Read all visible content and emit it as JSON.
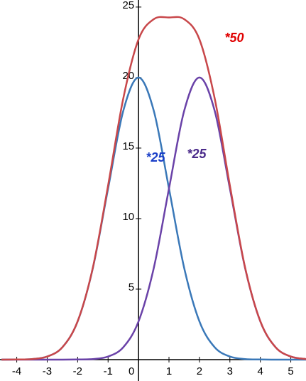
{
  "chart_data": {
    "type": "line",
    "x": [
      -4.5,
      -4,
      -3.5,
      -3,
      -2.5,
      -2,
      -1.5,
      -1,
      -0.5,
      0,
      0.5,
      1,
      1.5,
      2,
      2.5,
      3,
      3.5,
      4,
      4.5,
      5,
      5.5
    ],
    "series": [
      {
        "color": "#3a78b8",
        "values": [
          0,
          0.01,
          0.04,
          0.22,
          0.88,
          2.71,
          6.49,
          12.13,
          17.65,
          20,
          17.65,
          12.13,
          6.49,
          2.71,
          0.88,
          0.22,
          0.04,
          0.01,
          0,
          0,
          0
        ]
      },
      {
        "color": "#6a42a8",
        "values": [
          0,
          0,
          0,
          0,
          0,
          0.01,
          0.04,
          0.22,
          0.88,
          2.71,
          6.49,
          12.13,
          17.65,
          20,
          17.65,
          12.13,
          6.49,
          2.71,
          0.88,
          0.22,
          0.04
        ]
      },
      {
        "color": "#c8474a",
        "values": [
          0,
          0.01,
          0.04,
          0.22,
          0.88,
          2.72,
          6.53,
          12.35,
          18.53,
          22.71,
          24.14,
          24.26,
          24.14,
          22.71,
          18.53,
          12.35,
          6.53,
          2.72,
          0.88,
          0.22,
          0.04
        ]
      }
    ],
    "annotations": [
      {
        "text": "*50",
        "color": "#e00000"
      },
      {
        "text": "*25",
        "color": "#1a3fc8"
      },
      {
        "text": "*25",
        "color": "#4a2a8a"
      }
    ],
    "xlim": [
      -4.55,
      5.5
    ],
    "ylim": [
      0,
      25.5
    ],
    "xticks": [
      -4,
      -3,
      -2,
      -1,
      0,
      1,
      2,
      3,
      4,
      5
    ],
    "yticks": [
      5,
      10,
      15,
      20,
      25
    ],
    "grid": false
  }
}
